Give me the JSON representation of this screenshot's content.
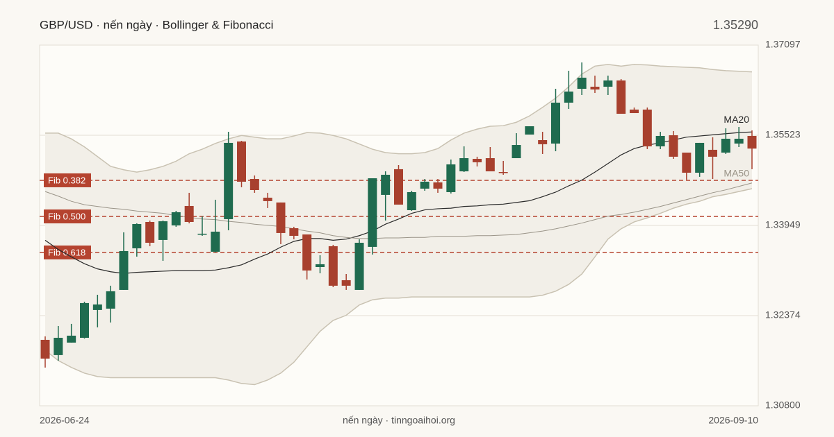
{
  "chart_data": {
    "type": "candlestick",
    "title": "GBP/USD · nến ngày · Bollinger & Fibonacci",
    "last_price": {
      "value": 1.3529,
      "label": "1.35290"
    },
    "footer": "nến ngày · tinngoaihoi.org",
    "categories": [
      "2026-06-24",
      null,
      null,
      null,
      null,
      null,
      null,
      null,
      null,
      null,
      null,
      null,
      null,
      null,
      null,
      null,
      null,
      null,
      null,
      null,
      null,
      null,
      null,
      null,
      null,
      null,
      null,
      null,
      null,
      null,
      null,
      null,
      null,
      null,
      null,
      null,
      null,
      null,
      null,
      null,
      null,
      null,
      null,
      null,
      null,
      null,
      null,
      null,
      null,
      null,
      null,
      null,
      null,
      null,
      "2026-09-10"
    ],
    "open": [
      1.31951,
      1.31685,
      1.31903,
      1.31987,
      1.32472,
      1.32496,
      1.32823,
      1.33549,
      1.34009,
      1.33695,
      1.33949,
      1.34288,
      1.33791,
      1.33489,
      1.34058,
      1.35414,
      1.3476,
      1.34433,
      1.34349,
      1.339,
      1.33791,
      1.33222,
      1.33586,
      1.32992,
      1.32823,
      1.33574,
      1.34482,
      1.3493,
      1.34215,
      1.34591,
      1.347,
      1.3453,
      1.34893,
      1.35111,
      1.35123,
      1.34881,
      1.35123,
      1.35535,
      1.35438,
      1.35378,
      1.36092,
      1.36334,
      1.3637,
      1.3637,
      1.36479,
      1.35971,
      1.35971,
      1.35329,
      1.35523,
      1.3522,
      1.34869,
      1.35269,
      1.3522,
      1.35378,
      1.35511
    ],
    "high": [
      1.32012,
      1.32193,
      1.3223,
      1.32617,
      1.32738,
      1.32896,
      1.33828,
      1.33985,
      1.34034,
      1.34034,
      1.34203,
      1.34518,
      1.34106,
      1.34397,
      1.35583,
      1.35426,
      1.34821,
      1.34518,
      1.34349,
      1.33925,
      1.33791,
      1.33428,
      1.3361,
      1.33101,
      1.33707,
      1.34772,
      1.34893,
      1.35002,
      1.34554,
      1.3476,
      1.3476,
      1.35099,
      1.35329,
      1.35148,
      1.35317,
      1.35075,
      1.35559,
      1.3568,
      1.35583,
      1.36334,
      1.36649,
      1.36794,
      1.36564,
      1.36564,
      1.36504,
      1.36007,
      1.36007,
      1.35583,
      1.35596,
      1.3522,
      1.3539,
      1.35487,
      1.35644,
      1.35668,
      1.35608
    ],
    "low": [
      1.31467,
      1.31588,
      1.31903,
      1.31975,
      1.32169,
      1.32254,
      1.32823,
      1.33404,
      1.33586,
      1.33331,
      1.33925,
      1.33985,
      1.33767,
      1.33477,
      1.33864,
      1.34615,
      1.34518,
      1.34252,
      1.33622,
      1.33707,
      1.33005,
      1.33113,
      1.32871,
      1.32823,
      1.32823,
      1.3344,
      1.34034,
      1.34312,
      1.34203,
      1.34554,
      1.34518,
      1.34506,
      1.34881,
      1.34978,
      1.34893,
      1.34833,
      1.35123,
      1.35535,
      1.35196,
      1.35244,
      1.35983,
      1.36225,
      1.36261,
      1.36225,
      1.35898,
      1.3591,
      1.35281,
      1.35281,
      1.35111,
      1.34748,
      1.34797,
      1.3476,
      1.35196,
      1.35317,
      1.3493
    ],
    "close": [
      1.31624,
      1.31987,
      1.32024,
      1.32593,
      1.32569,
      1.32799,
      1.33501,
      1.33973,
      1.33646,
      1.34022,
      1.34179,
      1.34009,
      1.33804,
      1.3384,
      1.3539,
      1.34712,
      1.34566,
      1.34373,
      1.33816,
      1.33767,
      1.33162,
      1.33271,
      1.32896,
      1.32896,
      1.33646,
      1.34772,
      1.34833,
      1.34312,
      1.3453,
      1.34712,
      1.34591,
      1.35014,
      1.35123,
      1.35051,
      1.34893,
      1.34869,
      1.35353,
      1.3568,
      1.35366,
      1.36092,
      1.36286,
      1.36528,
      1.36322,
      1.36479,
      1.35898,
      1.3591,
      1.35329,
      1.35511,
      1.35148,
      1.34869,
      1.3539,
      1.35148,
      1.35462,
      1.35462,
      1.3529
    ],
    "up_color": "#1f6b4f",
    "down_color": "#a8402e",
    "bollinger_upper": [
      1.3556,
      1.3556,
      1.3546,
      1.3532,
      1.3515,
      1.3498,
      1.3492,
      1.3488,
      1.3492,
      1.3498,
      1.3507,
      1.352,
      1.3528,
      1.3538,
      1.3546,
      1.3552,
      1.3549,
      1.3546,
      1.3546,
      1.3551,
      1.3557,
      1.3556,
      1.3552,
      1.3546,
      1.3537,
      1.3528,
      1.3522,
      1.352,
      1.352,
      1.3522,
      1.3529,
      1.3544,
      1.3556,
      1.3563,
      1.3568,
      1.3569,
      1.3575,
      1.3586,
      1.3601,
      1.3617,
      1.3637,
      1.3659,
      1.3673,
      1.3676,
      1.3673,
      1.3676,
      1.3675,
      1.3673,
      1.3672,
      1.3671,
      1.367,
      1.3667,
      1.3665,
      1.3664,
      1.3663
    ],
    "bollinger_lower": [
      1.3177,
      1.3159,
      1.3147,
      1.3137,
      1.3131,
      1.3129,
      1.3129,
      1.3129,
      1.3129,
      1.3129,
      1.3129,
      1.3129,
      1.3129,
      1.3129,
      1.3125,
      1.3119,
      1.3117,
      1.3125,
      1.3137,
      1.3156,
      1.3183,
      1.321,
      1.3229,
      1.3238,
      1.3256,
      1.3265,
      1.3268,
      1.3268,
      1.327,
      1.327,
      1.327,
      1.327,
      1.327,
      1.327,
      1.327,
      1.327,
      1.327,
      1.327,
      1.3273,
      1.328,
      1.3292,
      1.331,
      1.334,
      1.3371,
      1.3389,
      1.3401,
      1.3408,
      1.3416,
      1.3425,
      1.3432,
      1.3437,
      1.3445,
      1.3449,
      1.3454,
      1.3459
    ],
    "band_color": "#c9c2b2",
    "band_fill": "#f2efe8",
    "ma": [
      {
        "name": "MA20",
        "color": "#2a2a2a",
        "values": [
          1.3369,
          1.3353,
          1.334,
          1.3328,
          1.3319,
          1.3314,
          1.3311,
          1.3313,
          1.3314,
          1.3315,
          1.3316,
          1.3316,
          1.3316,
          1.3317,
          1.3321,
          1.3326,
          1.3336,
          1.3345,
          1.3357,
          1.3367,
          1.3372,
          1.3372,
          1.3369,
          1.3371,
          1.3377,
          1.3385,
          1.3397,
          1.3406,
          1.3416,
          1.3422,
          1.3424,
          1.3425,
          1.3428,
          1.3429,
          1.3431,
          1.3432,
          1.3435,
          1.3438,
          1.3445,
          1.3453,
          1.3464,
          1.3474,
          1.3488,
          1.3503,
          1.3518,
          1.3529,
          1.3535,
          1.3539,
          1.3544,
          1.3549,
          1.3551,
          1.3553,
          1.3555,
          1.3557,
          1.3558
        ]
      },
      {
        "name": "MA50",
        "color": "#9a9488",
        "values": [
          1.3454,
          1.3446,
          1.3437,
          1.3431,
          1.3428,
          1.3425,
          1.3423,
          1.342,
          1.3418,
          1.3416,
          1.3412,
          1.3409,
          1.3406,
          1.3405,
          1.3402,
          1.34,
          1.3397,
          1.3395,
          1.3393,
          1.3389,
          1.3385,
          1.3382,
          1.3377,
          1.3374,
          1.3372,
          1.3372,
          1.3373,
          1.3373,
          1.3374,
          1.3374,
          1.3376,
          1.3376,
          1.3376,
          1.3377,
          1.3377,
          1.3378,
          1.3379,
          1.3382,
          1.3385,
          1.3389,
          1.3394,
          1.3399,
          1.3405,
          1.3411,
          1.3414,
          1.3418,
          1.3423,
          1.3428,
          1.3434,
          1.344,
          1.3446,
          1.3452,
          1.3457,
          1.3463,
          1.3469
        ]
      }
    ],
    "fib": [
      {
        "label": "Fib 0.382",
        "value": 1.34736
      },
      {
        "label": "Fib 0.500",
        "value": 1.34106
      },
      {
        "label": "Fib 0.618",
        "value": 1.33477
      }
    ],
    "fib_color": "#b5432f",
    "ylim": [
      1.308,
      1.37097
    ],
    "yticks": [
      {
        "value": 1.308,
        "label": "1.30800"
      },
      1.32374,
      1.33949,
      1.35523,
      1.37097
    ],
    "grid": true
  }
}
